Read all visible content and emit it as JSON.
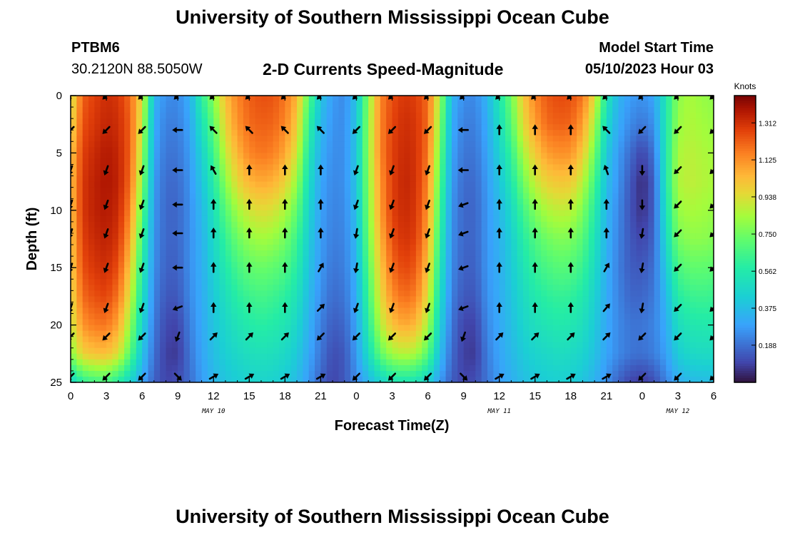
{
  "page": {
    "title": "University of Southern Mississippi Ocean Cube",
    "station_id": "PTBM6",
    "coordinates": "30.2120N  88.5050W",
    "subtitle": "2-D Currents Speed-Magnitude",
    "model_start_label": "Model Start Time",
    "model_start_value": "05/10/2023 Hour 03",
    "footer_title": "University of Southern Mississippi Ocean Cube"
  },
  "chart_data": {
    "type": "heatmap",
    "xlabel": "Forecast Time(Z)",
    "ylabel": "Depth (ft)",
    "x_range_hours": [
      0,
      54
    ],
    "y_range_ft": [
      0,
      25
    ],
    "x_ticks": [
      {
        "hour": 0,
        "label": "0"
      },
      {
        "hour": 3,
        "label": "3"
      },
      {
        "hour": 6,
        "label": "6"
      },
      {
        "hour": 9,
        "label": "9"
      },
      {
        "hour": 12,
        "label": "12"
      },
      {
        "hour": 15,
        "label": "15"
      },
      {
        "hour": 18,
        "label": "18"
      },
      {
        "hour": 21,
        "label": "21"
      },
      {
        "hour": 24,
        "label": "0"
      },
      {
        "hour": 27,
        "label": "3"
      },
      {
        "hour": 30,
        "label": "6"
      },
      {
        "hour": 33,
        "label": "9"
      },
      {
        "hour": 36,
        "label": "12"
      },
      {
        "hour": 39,
        "label": "15"
      },
      {
        "hour": 42,
        "label": "18"
      },
      {
        "hour": 45,
        "label": "21"
      },
      {
        "hour": 48,
        "label": "0"
      },
      {
        "hour": 51,
        "label": "3"
      },
      {
        "hour": 54,
        "label": "6"
      }
    ],
    "y_ticks": [
      {
        "depth": 0,
        "label": "0"
      },
      {
        "depth": 5,
        "label": "5"
      },
      {
        "depth": 10,
        "label": "10"
      },
      {
        "depth": 15,
        "label": "15"
      },
      {
        "depth": 20,
        "label": "20"
      },
      {
        "depth": 25,
        "label": "25"
      }
    ],
    "date_labels": [
      {
        "hour": 12,
        "label": "MAY 10"
      },
      {
        "hour": 36,
        "label": "MAY 11"
      },
      {
        "hour": 51,
        "label": "MAY 12"
      }
    ],
    "colorbar": {
      "title": "Knots",
      "min": 0.0,
      "max": 1.45,
      "ticks": [
        0.188,
        0.375,
        0.562,
        0.75,
        0.938,
        1.125,
        1.312
      ],
      "tick_labels": [
        "0.188",
        "0.375",
        "0.562",
        "0.750",
        "0.938",
        "1.125",
        "1.312"
      ]
    },
    "grid_hours": [
      0,
      1,
      2,
      3,
      4,
      5,
      6,
      7,
      8,
      9,
      10,
      11,
      12,
      13,
      14,
      15,
      16,
      17,
      18,
      19,
      20,
      21,
      22,
      23,
      24,
      25,
      26,
      27,
      28,
      29,
      30,
      31,
      32,
      33,
      34,
      35,
      36,
      37,
      38,
      39,
      40,
      41,
      42,
      43,
      44,
      45,
      46,
      47,
      48,
      49,
      50,
      51,
      52,
      53,
      54
    ],
    "grid_depths_ft": [
      0,
      2.5,
      5,
      7.5,
      10,
      12.5,
      15,
      17.5,
      20,
      22.5,
      25
    ],
    "speed_knots": [
      [
        0.9,
        1.22,
        1.28,
        1.32,
        1.3,
        1.2,
        0.95,
        0.35,
        0.25,
        0.24,
        0.33,
        0.6,
        0.8,
        1.03,
        1.15,
        1.22,
        1.25,
        1.24,
        1.18,
        1.05,
        0.7,
        0.4,
        0.28,
        0.24,
        0.4,
        0.8,
        1.15,
        1.25,
        1.3,
        1.28,
        1.2,
        0.85,
        0.35,
        0.25,
        0.24,
        0.35,
        0.55,
        0.75,
        1.0,
        1.15,
        1.23,
        1.26,
        1.25,
        1.18,
        0.95,
        0.55,
        0.35,
        0.28,
        0.26,
        0.3,
        0.55,
        0.8,
        0.85,
        0.82,
        0.8
      ],
      [
        0.95,
        1.25,
        1.3,
        1.34,
        1.32,
        1.22,
        0.9,
        0.32,
        0.22,
        0.22,
        0.3,
        0.52,
        0.72,
        0.98,
        1.12,
        1.2,
        1.22,
        1.21,
        1.15,
        1.0,
        0.62,
        0.36,
        0.26,
        0.25,
        0.4,
        0.82,
        1.15,
        1.27,
        1.32,
        1.3,
        1.2,
        0.8,
        0.32,
        0.22,
        0.22,
        0.32,
        0.5,
        0.7,
        0.95,
        1.1,
        1.2,
        1.22,
        1.21,
        1.1,
        0.85,
        0.48,
        0.32,
        0.24,
        0.2,
        0.26,
        0.55,
        0.82,
        0.86,
        0.84,
        0.82
      ],
      [
        1.0,
        1.28,
        1.33,
        1.37,
        1.34,
        1.22,
        0.85,
        0.3,
        0.2,
        0.2,
        0.28,
        0.45,
        0.65,
        0.9,
        1.05,
        1.15,
        1.18,
        1.16,
        1.08,
        0.92,
        0.55,
        0.33,
        0.25,
        0.25,
        0.4,
        0.82,
        1.15,
        1.28,
        1.33,
        1.31,
        1.18,
        0.75,
        0.3,
        0.2,
        0.2,
        0.3,
        0.45,
        0.62,
        0.85,
        1.0,
        1.1,
        1.13,
        1.12,
        1.0,
        0.75,
        0.42,
        0.28,
        0.18,
        0.1,
        0.2,
        0.55,
        0.85,
        0.88,
        0.86,
        0.84
      ],
      [
        1.02,
        1.3,
        1.35,
        1.38,
        1.35,
        1.2,
        0.8,
        0.28,
        0.18,
        0.18,
        0.26,
        0.4,
        0.58,
        0.8,
        0.96,
        1.05,
        1.08,
        1.06,
        0.98,
        0.82,
        0.5,
        0.3,
        0.24,
        0.25,
        0.4,
        0.8,
        1.12,
        1.28,
        1.34,
        1.31,
        1.15,
        0.7,
        0.28,
        0.18,
        0.18,
        0.28,
        0.4,
        0.55,
        0.75,
        0.9,
        0.98,
        1.01,
        1.0,
        0.88,
        0.66,
        0.38,
        0.26,
        0.14,
        0.05,
        0.16,
        0.55,
        0.86,
        0.89,
        0.87,
        0.85
      ],
      [
        1.02,
        1.3,
        1.35,
        1.37,
        1.33,
        1.15,
        0.72,
        0.27,
        0.17,
        0.17,
        0.25,
        0.36,
        0.52,
        0.7,
        0.84,
        0.92,
        0.95,
        0.93,
        0.86,
        0.72,
        0.46,
        0.29,
        0.23,
        0.24,
        0.38,
        0.78,
        1.1,
        1.28,
        1.33,
        1.3,
        1.12,
        0.65,
        0.26,
        0.17,
        0.17,
        0.27,
        0.36,
        0.48,
        0.65,
        0.78,
        0.86,
        0.89,
        0.88,
        0.78,
        0.58,
        0.35,
        0.24,
        0.13,
        0.06,
        0.16,
        0.52,
        0.82,
        0.85,
        0.84,
        0.82
      ],
      [
        1.0,
        1.28,
        1.33,
        1.35,
        1.3,
        1.08,
        0.65,
        0.26,
        0.17,
        0.17,
        0.25,
        0.34,
        0.48,
        0.62,
        0.74,
        0.81,
        0.84,
        0.82,
        0.76,
        0.64,
        0.43,
        0.28,
        0.22,
        0.23,
        0.36,
        0.75,
        1.05,
        1.25,
        1.31,
        1.28,
        1.08,
        0.6,
        0.25,
        0.17,
        0.17,
        0.27,
        0.34,
        0.44,
        0.58,
        0.68,
        0.75,
        0.78,
        0.77,
        0.7,
        0.53,
        0.34,
        0.23,
        0.14,
        0.1,
        0.17,
        0.48,
        0.76,
        0.8,
        0.8,
        0.78
      ],
      [
        0.98,
        1.25,
        1.3,
        1.32,
        1.25,
        1.0,
        0.58,
        0.25,
        0.16,
        0.16,
        0.25,
        0.33,
        0.45,
        0.56,
        0.66,
        0.72,
        0.74,
        0.72,
        0.68,
        0.58,
        0.4,
        0.27,
        0.2,
        0.22,
        0.34,
        0.7,
        1.0,
        1.2,
        1.27,
        1.23,
        1.02,
        0.55,
        0.24,
        0.16,
        0.16,
        0.27,
        0.33,
        0.42,
        0.53,
        0.62,
        0.67,
        0.7,
        0.69,
        0.63,
        0.49,
        0.33,
        0.22,
        0.15,
        0.14,
        0.19,
        0.42,
        0.67,
        0.72,
        0.72,
        0.71
      ],
      [
        0.95,
        1.2,
        1.25,
        1.27,
        1.18,
        0.92,
        0.52,
        0.23,
        0.14,
        0.14,
        0.24,
        0.32,
        0.42,
        0.51,
        0.59,
        0.64,
        0.66,
        0.64,
        0.6,
        0.52,
        0.37,
        0.25,
        0.18,
        0.2,
        0.32,
        0.65,
        0.95,
        1.13,
        1.2,
        1.16,
        0.95,
        0.5,
        0.22,
        0.14,
        0.14,
        0.26,
        0.32,
        0.4,
        0.49,
        0.56,
        0.6,
        0.62,
        0.61,
        0.56,
        0.45,
        0.32,
        0.23,
        0.17,
        0.17,
        0.21,
        0.36,
        0.58,
        0.63,
        0.64,
        0.63
      ],
      [
        0.9,
        1.12,
        1.17,
        1.18,
        1.08,
        0.82,
        0.46,
        0.21,
        0.11,
        0.1,
        0.22,
        0.31,
        0.4,
        0.47,
        0.53,
        0.57,
        0.59,
        0.57,
        0.54,
        0.47,
        0.34,
        0.22,
        0.15,
        0.17,
        0.3,
        0.58,
        0.87,
        1.02,
        1.08,
        1.04,
        0.85,
        0.45,
        0.2,
        0.1,
        0.1,
        0.24,
        0.31,
        0.38,
        0.46,
        0.51,
        0.54,
        0.56,
        0.55,
        0.51,
        0.42,
        0.31,
        0.24,
        0.2,
        0.2,
        0.23,
        0.32,
        0.5,
        0.55,
        0.56,
        0.56
      ],
      [
        0.8,
        0.98,
        1.02,
        1.03,
        0.94,
        0.7,
        0.4,
        0.19,
        0.09,
        0.08,
        0.2,
        0.3,
        0.38,
        0.44,
        0.48,
        0.51,
        0.52,
        0.51,
        0.48,
        0.42,
        0.31,
        0.2,
        0.12,
        0.14,
        0.28,
        0.5,
        0.72,
        0.84,
        0.88,
        0.85,
        0.7,
        0.38,
        0.18,
        0.09,
        0.08,
        0.22,
        0.3,
        0.36,
        0.42,
        0.46,
        0.48,
        0.5,
        0.49,
        0.46,
        0.39,
        0.3,
        0.24,
        0.2,
        0.19,
        0.22,
        0.29,
        0.43,
        0.48,
        0.49,
        0.49
      ],
      [
        0.45,
        0.6,
        0.65,
        0.66,
        0.58,
        0.45,
        0.3,
        0.16,
        0.1,
        0.12,
        0.18,
        0.28,
        0.35,
        0.4,
        0.43,
        0.45,
        0.46,
        0.45,
        0.42,
        0.37,
        0.27,
        0.16,
        0.1,
        0.14,
        0.24,
        0.35,
        0.45,
        0.52,
        0.54,
        0.52,
        0.44,
        0.28,
        0.15,
        0.1,
        0.12,
        0.2,
        0.28,
        0.33,
        0.38,
        0.41,
        0.43,
        0.44,
        0.43,
        0.4,
        0.34,
        0.25,
        0.16,
        0.1,
        0.08,
        0.12,
        0.22,
        0.32,
        0.36,
        0.37,
        0.37
      ]
    ],
    "arrow_hours": [
      0,
      3,
      6,
      9,
      12,
      15,
      18,
      21,
      24,
      27,
      30,
      33,
      36,
      39,
      42,
      45,
      48,
      51,
      54
    ],
    "arrow_depths_ft": [
      0,
      3,
      6.5,
      9.5,
      12,
      15,
      18.5,
      21,
      24.5
    ],
    "arrow_direction_deg": [
      [
        225,
        225,
        225,
        225,
        225,
        225,
        225,
        225,
        225,
        225,
        225,
        225,
        225,
        225,
        225,
        225,
        225,
        225,
        225
      ],
      [
        225,
        225,
        225,
        270,
        315,
        315,
        315,
        315,
        225,
        225,
        225,
        270,
        0,
        0,
        0,
        315,
        225,
        225,
        225
      ],
      [
        200,
        200,
        200,
        270,
        330,
        0,
        0,
        0,
        200,
        200,
        200,
        270,
        0,
        0,
        0,
        340,
        180,
        225,
        225
      ],
      [
        200,
        200,
        200,
        270,
        0,
        0,
        0,
        0,
        200,
        200,
        200,
        250,
        0,
        0,
        0,
        0,
        180,
        225,
        225
      ],
      [
        200,
        200,
        200,
        270,
        0,
        0,
        0,
        0,
        190,
        200,
        200,
        250,
        0,
        0,
        0,
        0,
        190,
        225,
        225
      ],
      [
        200,
        200,
        200,
        270,
        0,
        0,
        0,
        30,
        190,
        200,
        200,
        250,
        0,
        0,
        0,
        30,
        190,
        225,
        225
      ],
      [
        200,
        200,
        200,
        250,
        0,
        0,
        0,
        45,
        200,
        200,
        200,
        250,
        0,
        0,
        0,
        40,
        190,
        225,
        225
      ],
      [
        225,
        225,
        225,
        200,
        45,
        45,
        45,
        225,
        225,
        225,
        225,
        200,
        45,
        45,
        45,
        45,
        225,
        225,
        225
      ],
      [
        225,
        225,
        225,
        135,
        60,
        60,
        60,
        60,
        225,
        225,
        225,
        135,
        60,
        60,
        60,
        60,
        225,
        225,
        225
      ]
    ]
  }
}
